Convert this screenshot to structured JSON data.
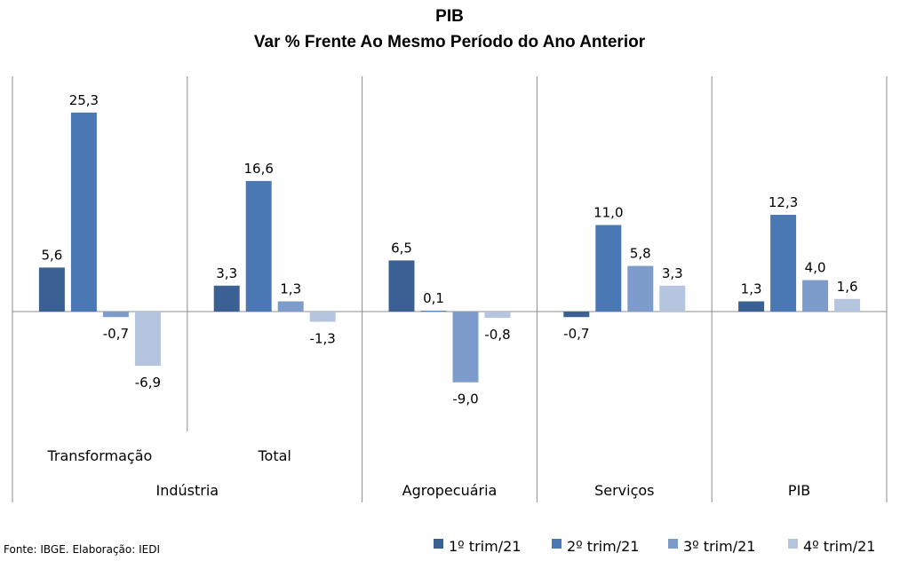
{
  "chart_data": {
    "type": "bar",
    "title": "PIB",
    "subtitle": "Var % Frente Ao Mesmo Período do Ano Anterior",
    "groups": [
      {
        "label": "Indústria",
        "subcategories": [
          "Transformação",
          "Total"
        ]
      },
      {
        "label": "Agropecuária",
        "subcategories": [
          ""
        ]
      },
      {
        "label": "Serviços",
        "subcategories": [
          ""
        ]
      },
      {
        "label": "PIB",
        "subcategories": [
          ""
        ]
      }
    ],
    "categories": [
      "Transformação",
      "Total",
      "Agropecuária",
      "Serviços",
      "PIB"
    ],
    "series": [
      {
        "name": "1º trim/21",
        "color": "#3b6094",
        "values": [
          5.6,
          3.3,
          6.5,
          -0.7,
          1.3
        ],
        "labels": [
          "5,6",
          "3,3",
          "6,5",
          "-0,7",
          "1,3"
        ]
      },
      {
        "name": "2º trim/21",
        "color": "#4a78b4",
        "values": [
          25.3,
          16.6,
          0.1,
          11.0,
          12.3
        ],
        "labels": [
          "25,3",
          "16,6",
          "0,1",
          "11,0",
          "12,3"
        ]
      },
      {
        "name": "3º trim/21",
        "color": "#7e9ccb",
        "values": [
          -0.7,
          1.3,
          -9.0,
          5.8,
          4.0
        ],
        "labels": [
          "-0,7",
          "1,3",
          "-9,0",
          "5,8",
          "4,0"
        ]
      },
      {
        "name": "4º trim/21",
        "color": "#b5c5e0",
        "values": [
          -6.9,
          -1.3,
          -0.8,
          3.3,
          1.6
        ],
        "labels": [
          "-6,9",
          "-1,3",
          "-0,8",
          "3,3",
          "1,6"
        ]
      }
    ],
    "ylim": [
      -15,
      30
    ],
    "grid": false,
    "legend_position": "bottom-right",
    "source": "Fonte: IBGE. Elaboração: IEDI"
  }
}
